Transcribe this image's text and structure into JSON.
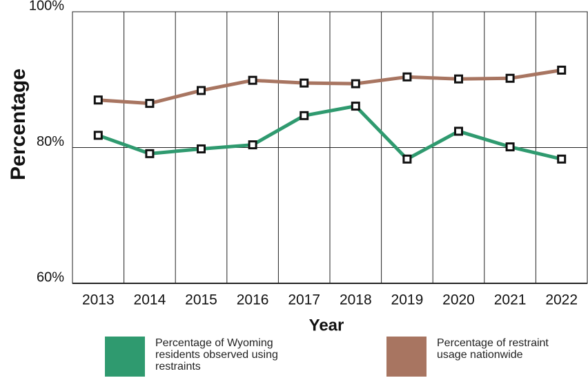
{
  "chart_data": {
    "type": "line",
    "x_label": "Year",
    "y_label": "Percentage",
    "categories": [
      "2013",
      "2014",
      "2015",
      "2016",
      "2017",
      "2018",
      "2019",
      "2020",
      "2021",
      "2022"
    ],
    "series": [
      {
        "name": "Percentage of Wyoming residents observed using restraints",
        "color": "#2f9a6f",
        "values": [
          81.8,
          79.1,
          79.8,
          80.4,
          84.7,
          86.1,
          78.3,
          82.4,
          80.1,
          78.3
        ]
      },
      {
        "name": "Percentage of restraint usage nationwide",
        "color": "#a87561",
        "values": [
          87.0,
          86.5,
          88.4,
          89.9,
          89.5,
          89.4,
          90.4,
          90.1,
          90.2,
          91.4
        ]
      }
    ],
    "ylim": [
      60,
      100
    ],
    "yticks": [
      {
        "value": 60,
        "label": "60%"
      },
      {
        "value": 80,
        "label": "80%"
      },
      {
        "value": 100,
        "label": "100%"
      }
    ],
    "grid": true
  }
}
